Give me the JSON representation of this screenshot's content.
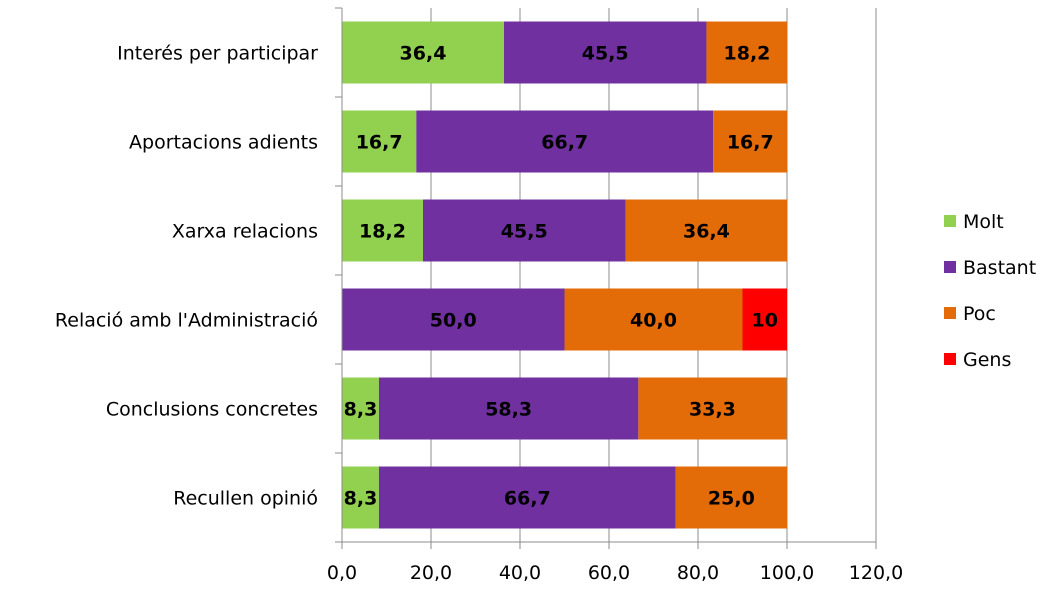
{
  "chart_data": {
    "type": "bar",
    "orientation": "horizontal",
    "stacked": true,
    "categories": [
      "Interés per participar",
      "Aportacions adients",
      "Xarxa relacions",
      "Relació amb l'Administració",
      "Conclusions concretes",
      "Recullen opinió"
    ],
    "series": [
      {
        "name": "Molt",
        "color": "#92D050",
        "values": [
          36.4,
          16.7,
          18.2,
          0,
          8.3,
          8.3
        ],
        "labels": [
          "36,4",
          "16,7",
          "18,2",
          "",
          "8,3",
          "8,3"
        ]
      },
      {
        "name": "Bastant",
        "color": "#7030A0",
        "values": [
          45.5,
          66.7,
          45.5,
          50.0,
          58.3,
          66.7
        ],
        "labels": [
          "45,5",
          "66,7",
          "45,5",
          "50,0",
          "58,3",
          "66,7"
        ]
      },
      {
        "name": "Poc",
        "color": "#E36C09",
        "values": [
          18.2,
          16.7,
          36.4,
          40.0,
          33.3,
          25.0
        ],
        "labels": [
          "18,2",
          "16,7",
          "36,4",
          "40,0",
          "33,3",
          "25,0"
        ]
      },
      {
        "name": "Gens",
        "color": "#FF0000",
        "values": [
          0,
          0,
          0,
          10,
          0,
          0
        ],
        "labels": [
          "",
          "",
          "",
          "10",
          "",
          ""
        ]
      }
    ],
    "xlim": [
      0,
      120
    ],
    "xticks": [
      0,
      20,
      40,
      60,
      80,
      100,
      120
    ],
    "xtick_labels": [
      "0,0",
      "20,0",
      "40,0",
      "60,0",
      "80,0",
      "100,0",
      "120,0"
    ],
    "grid": true,
    "legend": "right",
    "title": "",
    "xlabel": "",
    "ylabel": ""
  }
}
